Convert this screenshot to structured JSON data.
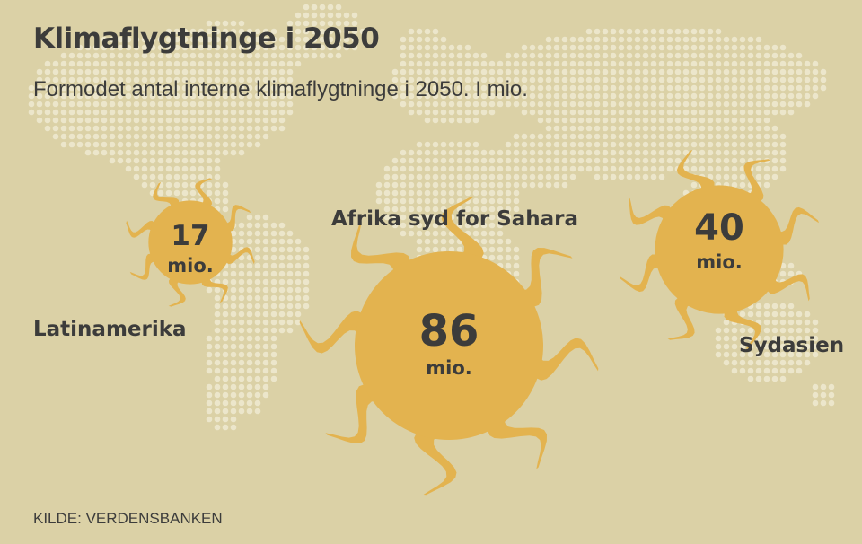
{
  "header": {
    "title": "Klimaflygtninge i 2050",
    "subtitle": "Formodet antal interne klimaflygtninge i 2050. I mio."
  },
  "footer": {
    "source": "KILDE: VERDENSBANKEN"
  },
  "colors": {
    "background": "#dbd1a6",
    "sun": "#e3b34f",
    "text": "#3c3c3b",
    "map_dots": "#ece6cb"
  },
  "chart_data": {
    "type": "bubble",
    "title": "Klimaflygtninge i 2050",
    "subtitle": "Formodet antal interne klimaflygtninge i 2050. I mio.",
    "unit": "mio.",
    "series": [
      {
        "region": "Latinamerika",
        "value": 17
      },
      {
        "region": "Afrika syd for Sahara",
        "value": 86
      },
      {
        "region": "Sydasien",
        "value": 40
      }
    ]
  }
}
